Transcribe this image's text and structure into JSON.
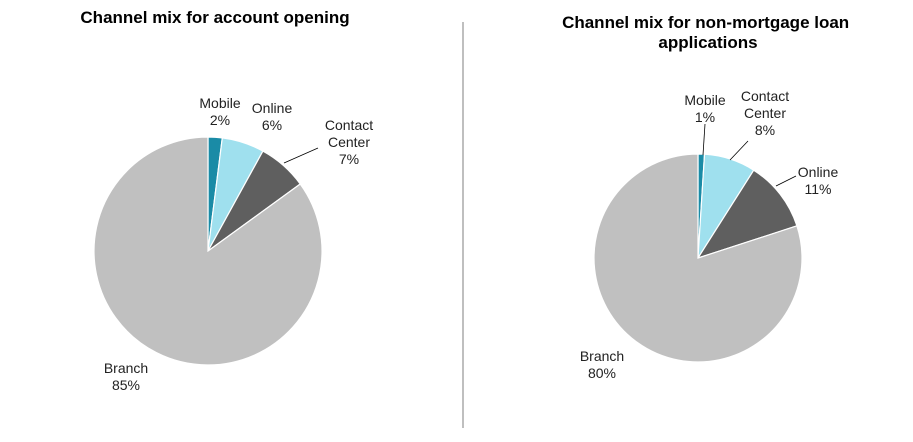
{
  "chart_data": [
    {
      "type": "pie",
      "title": "Channel mix for account opening",
      "slices": [
        {
          "label": "Mobile",
          "value": 2,
          "value_label": "2%",
          "color": "#1a8ba6"
        },
        {
          "label": "Online",
          "value": 6,
          "value_label": "6%",
          "color": "#9fe0ee"
        },
        {
          "label": "Contact Center",
          "value": 7,
          "value_label": "7%",
          "color": "#5f5f5f"
        },
        {
          "label": "Branch",
          "value": 85,
          "value_label": "85%",
          "color": "#c0c0c0"
        }
      ]
    },
    {
      "type": "pie",
      "title": "Channel mix for non-mortgage loan applications",
      "slices": [
        {
          "label": "Mobile",
          "value": 1,
          "value_label": "1%",
          "color": "#1a8ba6"
        },
        {
          "label": "Contact Center",
          "value": 8,
          "value_label": "8%",
          "color": "#9fe0ee"
        },
        {
          "label": "Online",
          "value": 11,
          "value_label": "11%",
          "color": "#5f5f5f"
        },
        {
          "label": "Branch",
          "value": 80,
          "value_label": "80%",
          "color": "#c0c0c0"
        }
      ]
    }
  ]
}
